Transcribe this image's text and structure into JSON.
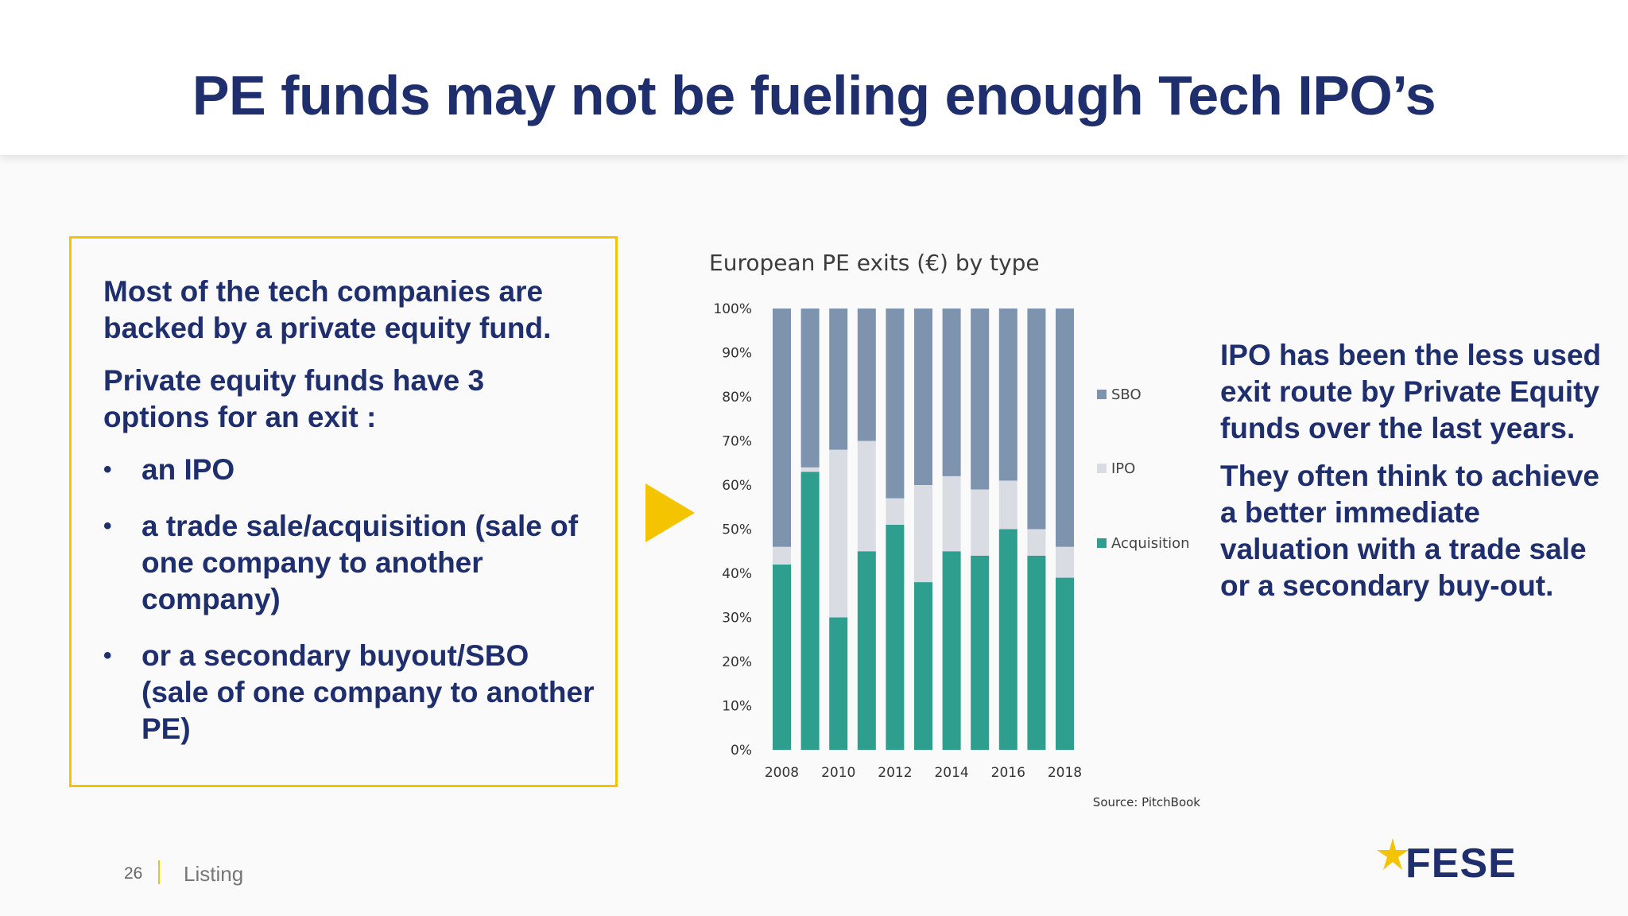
{
  "slide": {
    "title": "PE funds may not be fueling enough Tech IPO’s",
    "page_number": "26",
    "section": "Listing",
    "logo_text": "FESE"
  },
  "left_box": {
    "para1": "Most of the tech companies are backed by a private equity fund.",
    "para2": "Private equity funds have 3 options for an exit :",
    "bullets": [
      "an IPO",
      "a trade sale/acquisition (sale of one company to another company)",
      "or a secondary buyout/SBO (sale of one company to another PE)"
    ],
    "bullet_char": "•"
  },
  "right_text": {
    "para1": "IPO has been the less used exit route by Private Equity funds over the last years.",
    "para2": "They often think to achieve a better immediate valuation with a trade sale or a secondary buy-out."
  },
  "chart_data": {
    "type": "bar",
    "stacked": true,
    "title": "European PE exits (€) by type",
    "source": "Source: PitchBook",
    "categories": [
      "2008",
      "2009",
      "2010",
      "2011",
      "2012",
      "2013",
      "2014",
      "2015",
      "2016",
      "2017",
      "2018"
    ],
    "x_tick_labels": [
      "2008",
      "2010",
      "2012",
      "2014",
      "2016",
      "2018"
    ],
    "y_tick_labels": [
      "0%",
      "10%",
      "20%",
      "30%",
      "40%",
      "50%",
      "60%",
      "70%",
      "80%",
      "90%",
      "100%"
    ],
    "ylim": [
      0,
      100
    ],
    "legend_position": "right",
    "series": [
      {
        "name": "Acquisition",
        "color": "#2e9e8f",
        "values": [
          42,
          63,
          30,
          45,
          51,
          38,
          45,
          44,
          50,
          44,
          39
        ]
      },
      {
        "name": "IPO",
        "color": "#d9dde3",
        "values": [
          4,
          1,
          38,
          25,
          6,
          22,
          17,
          15,
          11,
          6,
          7
        ]
      },
      {
        "name": "SBO",
        "color": "#7d93ae",
        "values": [
          54,
          36,
          32,
          30,
          43,
          40,
          38,
          41,
          39,
          50,
          54
        ]
      }
    ],
    "legend_order": [
      "SBO",
      "IPO",
      "Acquisition"
    ],
    "grid": false
  },
  "colors": {
    "title": "#1f2f6d",
    "accent_yellow": "#f5c400"
  }
}
